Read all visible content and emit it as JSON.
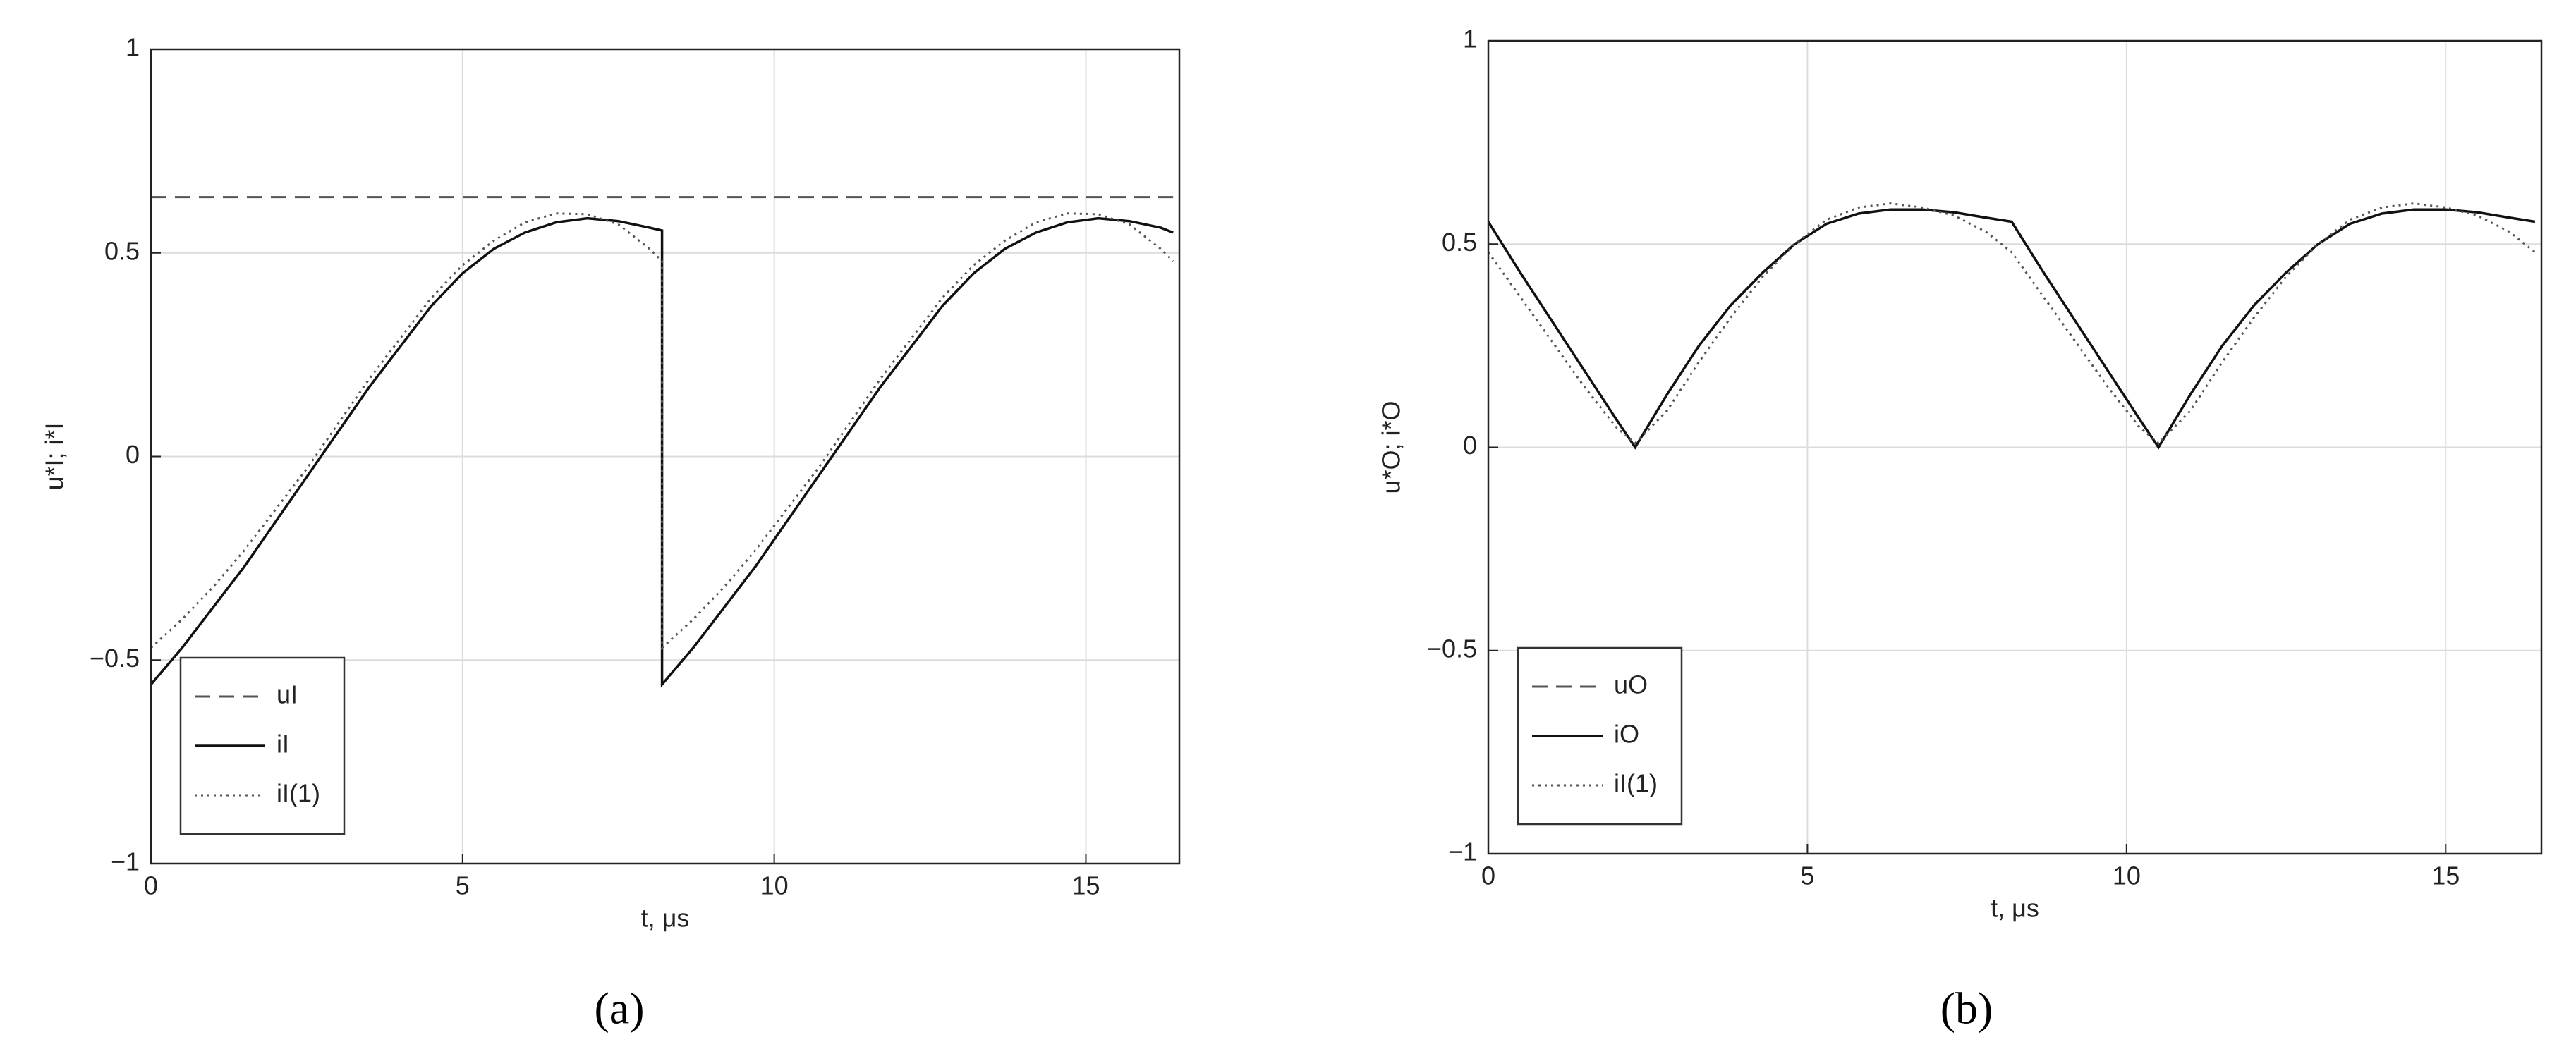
{
  "chart_data": [
    {
      "type": "line",
      "caption": "(a)",
      "x_label": "t, μs",
      "y_label": "u*I; i*I",
      "xlim": [
        0,
        16.5
      ],
      "ylim": [
        -1,
        1
      ],
      "xticks": [
        0,
        5,
        10,
        15
      ],
      "yticks": [
        {
          "value": -1,
          "label": "−1"
        },
        {
          "value": -0.5,
          "label": "−0.5"
        },
        0,
        0.5,
        1
      ],
      "grid": true,
      "legend": "lower left",
      "x": [
        0,
        0.5,
        1,
        1.5,
        2,
        2.5,
        3,
        3.5,
        4,
        4.5,
        5,
        5.5,
        6,
        6.5,
        7,
        7.5,
        8,
        8.2,
        8.2,
        8.7,
        9.2,
        9.7,
        10.2,
        10.7,
        11.2,
        11.7,
        12.2,
        12.7,
        13.2,
        13.7,
        14.2,
        14.7,
        15.2,
        15.7,
        16.2,
        16.4
      ],
      "series": [
        {
          "name": "uI",
          "color": "#555555",
          "style": "dashed",
          "values": [
            0.637,
            0.637,
            0.637,
            0.637,
            0.637,
            0.637,
            0.637,
            0.637,
            0.637,
            0.637,
            0.637,
            0.637,
            0.637,
            0.637,
            0.637,
            0.637,
            0.637,
            0.637,
            0.637,
            0.637,
            0.637,
            0.637,
            0.637,
            0.637,
            0.637,
            0.637,
            0.637,
            0.637,
            0.637,
            0.637,
            0.637,
            0.637,
            0.637,
            0.637,
            0.637,
            0.637
          ]
        },
        {
          "name": "iI",
          "color": "#111111",
          "style": "solid",
          "values": [
            -0.56,
            -0.47,
            -0.37,
            -0.27,
            -0.16,
            -0.05,
            0.06,
            0.17,
            0.27,
            0.37,
            0.45,
            0.51,
            0.55,
            0.575,
            0.585,
            0.578,
            0.562,
            0.555,
            -0.56,
            -0.47,
            -0.37,
            -0.27,
            -0.16,
            -0.05,
            0.06,
            0.17,
            0.27,
            0.37,
            0.45,
            0.51,
            0.55,
            0.575,
            0.585,
            0.578,
            0.562,
            0.55
          ]
        },
        {
          "name": "iI(1)",
          "color": "#555555",
          "style": "dotted",
          "values": [
            -0.47,
            -0.4,
            -0.32,
            -0.23,
            -0.13,
            -0.03,
            0.08,
            0.19,
            0.29,
            0.39,
            0.47,
            0.53,
            0.575,
            0.597,
            0.595,
            0.57,
            0.51,
            0.48,
            -0.47,
            -0.4,
            -0.32,
            -0.23,
            -0.13,
            -0.03,
            0.08,
            0.19,
            0.29,
            0.39,
            0.47,
            0.53,
            0.575,
            0.597,
            0.595,
            0.57,
            0.51,
            0.48
          ]
        }
      ]
    },
    {
      "type": "line",
      "caption": "(b)",
      "x_label": "t, μs",
      "y_label": "u*O; i*O",
      "xlim": [
        0,
        16.5
      ],
      "ylim": [
        -1,
        1
      ],
      "xticks": [
        0,
        5,
        10,
        15
      ],
      "yticks": [
        {
          "value": -1,
          "label": "−1"
        },
        {
          "value": -0.5,
          "label": "−0.5"
        },
        0,
        0.5,
        1
      ],
      "grid": true,
      "legend": "lower left",
      "x": [
        0,
        0.5,
        1,
        1.5,
        2,
        2.3,
        2.8,
        3.3,
        3.8,
        4.3,
        4.8,
        5.3,
        5.8,
        6.3,
        6.8,
        7.3,
        7.8,
        8.2,
        8.7,
        9.2,
        9.7,
        10.2,
        10.5,
        11,
        11.5,
        12,
        12.5,
        13,
        13.5,
        14,
        14.5,
        15,
        15.5,
        16,
        16.4
      ],
      "series": [
        {
          "name": "uO",
          "color": "#555555",
          "style": "dashed",
          "values": [
            null,
            null,
            null,
            null,
            null,
            null,
            null,
            null,
            null,
            null,
            null,
            null,
            null,
            null,
            null,
            null,
            null,
            null,
            null,
            null,
            null,
            null,
            null,
            null,
            null,
            null,
            null,
            null,
            null,
            null,
            null,
            null,
            null,
            null,
            null
          ]
        },
        {
          "name": "iO",
          "color": "#111111",
          "style": "solid",
          "values": [
            0.555,
            0.43,
            0.31,
            0.19,
            0.07,
            0,
            0.13,
            0.25,
            0.35,
            0.43,
            0.5,
            0.55,
            0.575,
            0.585,
            0.585,
            0.578,
            0.565,
            0.555,
            0.43,
            0.31,
            0.19,
            0.07,
            0,
            0.13,
            0.25,
            0.35,
            0.43,
            0.5,
            0.55,
            0.575,
            0.585,
            0.585,
            0.578,
            0.565,
            0.555
          ]
        },
        {
          "name": "iI(1)",
          "color": "#555555",
          "style": "dotted",
          "values": [
            0.48,
            0.37,
            0.26,
            0.15,
            0.05,
            0.01,
            0.09,
            0.21,
            0.32,
            0.42,
            0.5,
            0.56,
            0.59,
            0.6,
            0.59,
            0.57,
            0.53,
            0.48,
            0.37,
            0.26,
            0.15,
            0.05,
            0.01,
            0.09,
            0.21,
            0.32,
            0.42,
            0.5,
            0.56,
            0.59,
            0.6,
            0.59,
            0.57,
            0.53,
            0.48
          ]
        }
      ]
    }
  ]
}
